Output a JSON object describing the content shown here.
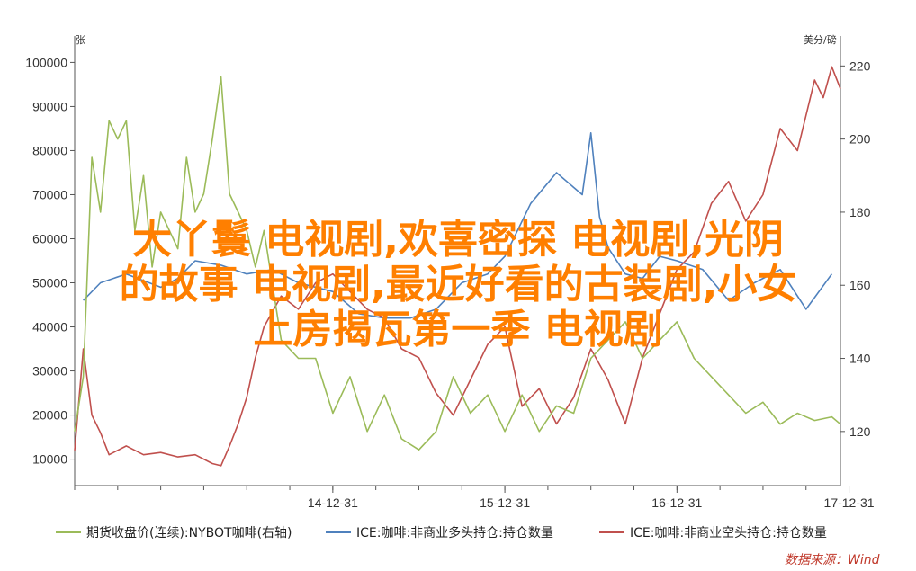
{
  "chart_data": {
    "type": "line",
    "left_axis": {
      "unit_label": "张",
      "ticks": [
        10000,
        20000,
        30000,
        40000,
        50000,
        60000,
        70000,
        80000,
        90000,
        100000
      ],
      "ylim": [
        4000,
        106000
      ]
    },
    "right_axis": {
      "unit_label": "美分/磅",
      "ticks": [
        120,
        140,
        160,
        180,
        200,
        220
      ],
      "ylim": [
        105.2,
        228.2
      ]
    },
    "x_axis": {
      "ticks": [
        "14-12-31",
        "15-12-31",
        "16-12-31",
        "17-12-31"
      ],
      "range_years": [
        2013.5,
        2017.95
      ]
    },
    "grid": false,
    "legend_position": "bottom",
    "series": [
      {
        "name": "ICE:咖啡:非商业多头持仓:持仓数量",
        "axis": "left",
        "color": "#4f81bd",
        "x": [
          2013.55,
          2013.65,
          2013.8,
          2014.0,
          2014.1,
          2014.2,
          2014.35,
          2014.5,
          2014.65,
          2014.8,
          2015.0,
          2015.15,
          2015.3,
          2015.45,
          2015.6,
          2015.75,
          2015.9,
          2016.0,
          2016.15,
          2016.3,
          2016.45,
          2016.5,
          2016.55,
          2016.6,
          2016.7,
          2016.8,
          2016.9,
          2017.0,
          2017.15,
          2017.3,
          2017.45,
          2017.6,
          2017.75,
          2017.9
        ],
        "y": [
          46000,
          50000,
          52000,
          49000,
          51000,
          55000,
          54000,
          52000,
          53000,
          50000,
          48000,
          43000,
          42000,
          42000,
          44000,
          50000,
          52000,
          56000,
          68000,
          75000,
          70000,
          84000,
          65000,
          58000,
          52000,
          51000,
          56000,
          55000,
          53000,
          46000,
          50000,
          53000,
          44000,
          52000
        ]
      },
      {
        "name": "ICE:咖啡:非商业空头持仓:持仓数量",
        "axis": "left",
        "color": "#c0504d",
        "x": [
          2013.5,
          2013.55,
          2013.6,
          2013.65,
          2013.7,
          2013.75,
          2013.8,
          2013.9,
          2014.0,
          2014.1,
          2014.2,
          2014.3,
          2014.35,
          2014.4,
          2014.45,
          2014.5,
          2014.55,
          2014.6,
          2014.7,
          2014.8,
          2014.9,
          2015.0,
          2015.1,
          2015.2,
          2015.3,
          2015.4,
          2015.5,
          2015.6,
          2015.7,
          2015.8,
          2015.9,
          2016.0,
          2016.1,
          2016.2,
          2016.3,
          2016.4,
          2016.5,
          2016.6,
          2016.7,
          2016.8,
          2016.9,
          2017.0,
          2017.1,
          2017.2,
          2017.3,
          2017.4,
          2017.5,
          2017.6,
          2017.7,
          2017.8,
          2017.85,
          2017.9,
          2017.95
        ],
        "y": [
          12000,
          35000,
          20000,
          16000,
          11000,
          12000,
          13000,
          11000,
          11500,
          10500,
          11000,
          9000,
          8500,
          13000,
          18000,
          24000,
          33000,
          40000,
          47000,
          44000,
          50000,
          52000,
          48000,
          44000,
          42000,
          35000,
          33000,
          25000,
          20000,
          28000,
          36000,
          40000,
          22000,
          26000,
          18000,
          24000,
          35000,
          28000,
          18000,
          33000,
          43000,
          53000,
          57000,
          68000,
          73000,
          64000,
          70000,
          85000,
          80000,
          96000,
          92000,
          99000,
          94000
        ]
      },
      {
        "name": "期货收盘价(连续):NYBOT咖啡(右轴)",
        "axis": "right",
        "color": "#9bbb59",
        "x": [
          2013.5,
          2013.55,
          2013.6,
          2013.65,
          2013.7,
          2013.75,
          2013.8,
          2013.85,
          2013.9,
          2013.95,
          2014.0,
          2014.05,
          2014.1,
          2014.15,
          2014.2,
          2014.25,
          2014.3,
          2014.35,
          2014.4,
          2014.45,
          2014.5,
          2014.55,
          2014.6,
          2014.7,
          2014.8,
          2014.9,
          2015.0,
          2015.1,
          2015.2,
          2015.3,
          2015.4,
          2015.5,
          2015.6,
          2015.7,
          2015.8,
          2015.9,
          2016.0,
          2016.1,
          2016.2,
          2016.3,
          2016.4,
          2016.5,
          2016.6,
          2016.7,
          2016.8,
          2016.9,
          2017.0,
          2017.1,
          2017.2,
          2017.3,
          2017.4,
          2017.5,
          2017.6,
          2017.7,
          2017.8,
          2017.9,
          2017.95
        ],
        "y": [
          120,
          135,
          195,
          180,
          205,
          200,
          205,
          175,
          190,
          165,
          180,
          175,
          170,
          195,
          180,
          185,
          200,
          217,
          185,
          180,
          175,
          165,
          175,
          145,
          140,
          140,
          125,
          135,
          120,
          130,
          118,
          115,
          120,
          135,
          125,
          130,
          120,
          130,
          120,
          127,
          125,
          140,
          145,
          150,
          140,
          145,
          150,
          140,
          135,
          130,
          125,
          128,
          122,
          125,
          123,
          124,
          122
        ]
      }
    ]
  },
  "legend": [
    {
      "label": "期货收盘价(连续):NYBOT咖啡(右轴)",
      "color": "#9bbb59"
    },
    {
      "label": "ICE:咖啡:非商业多头持仓:持仓数量",
      "color": "#4f81bd"
    },
    {
      "label": "ICE:咖啡:非商业空头持仓:持仓数量",
      "color": "#c0504d"
    }
  ],
  "source": "数据来源：Wind",
  "overlay_text": [
    "大丫鬟 电视剧,欢喜密探 电视剧,光阴",
    "的故事 电视剧,最近好看的古装剧,小女",
    "上房揭瓦第一季 电视剧"
  ]
}
